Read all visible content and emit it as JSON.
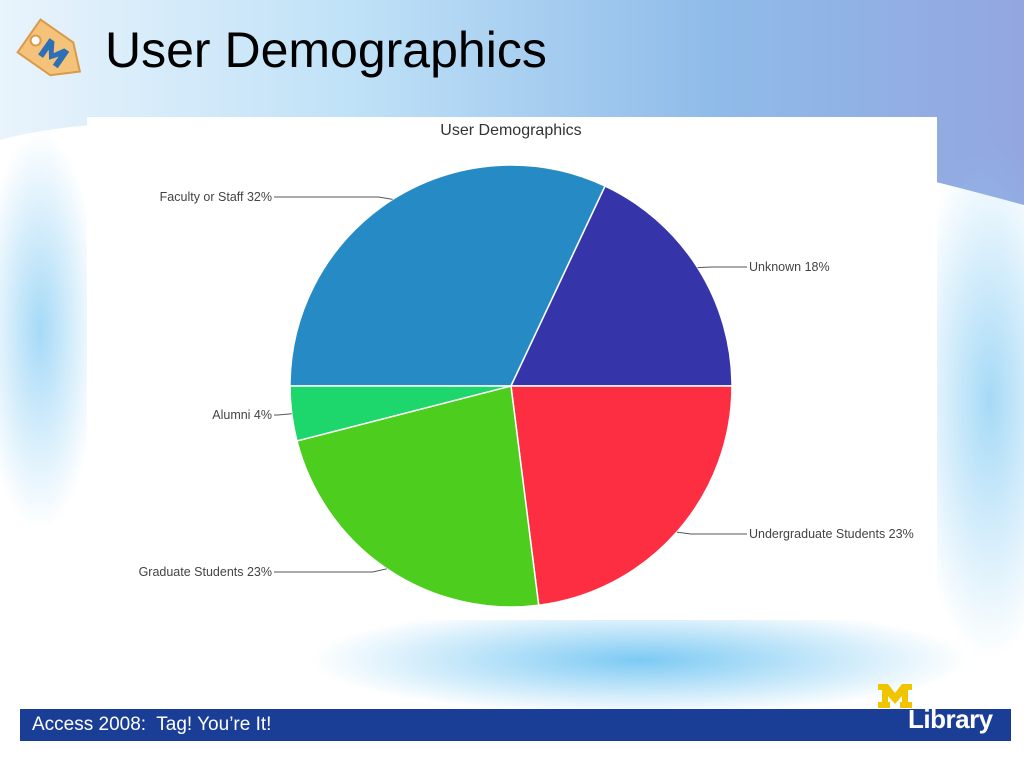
{
  "slide": {
    "title": "User Demographics",
    "footer_text": "Access 2008:  Tag! You’re It!",
    "library_word": "Library"
  },
  "chart_data": {
    "type": "pie",
    "title": "User Demographics",
    "slices": [
      {
        "label": "Faculty or Staff",
        "value": 32,
        "display": "Faculty or Staff 32%",
        "color": "#268bc4"
      },
      {
        "label": "Unknown",
        "value": 18,
        "display": "Unknown 18%",
        "color": "#3534a8"
      },
      {
        "label": "Undergraduate Students",
        "value": 23,
        "display": "Undergraduate Students 23%",
        "color": "#fd2e41"
      },
      {
        "label": "Graduate Students",
        "value": 23,
        "display": "Graduate Students 23%",
        "color": "#4dce1e"
      },
      {
        "label": "Alumni",
        "value": 4,
        "display": "Alumni 4%",
        "color": "#1dd66c"
      }
    ],
    "label_positions": [
      "top-left",
      "right",
      "bottom-right",
      "bottom-left",
      "left"
    ]
  },
  "colors": {
    "footer_bar": "#1a3d96",
    "logo_tag": "#f5c27a",
    "logo_m": "#2f6fb5",
    "library_m": "#f1c400"
  }
}
